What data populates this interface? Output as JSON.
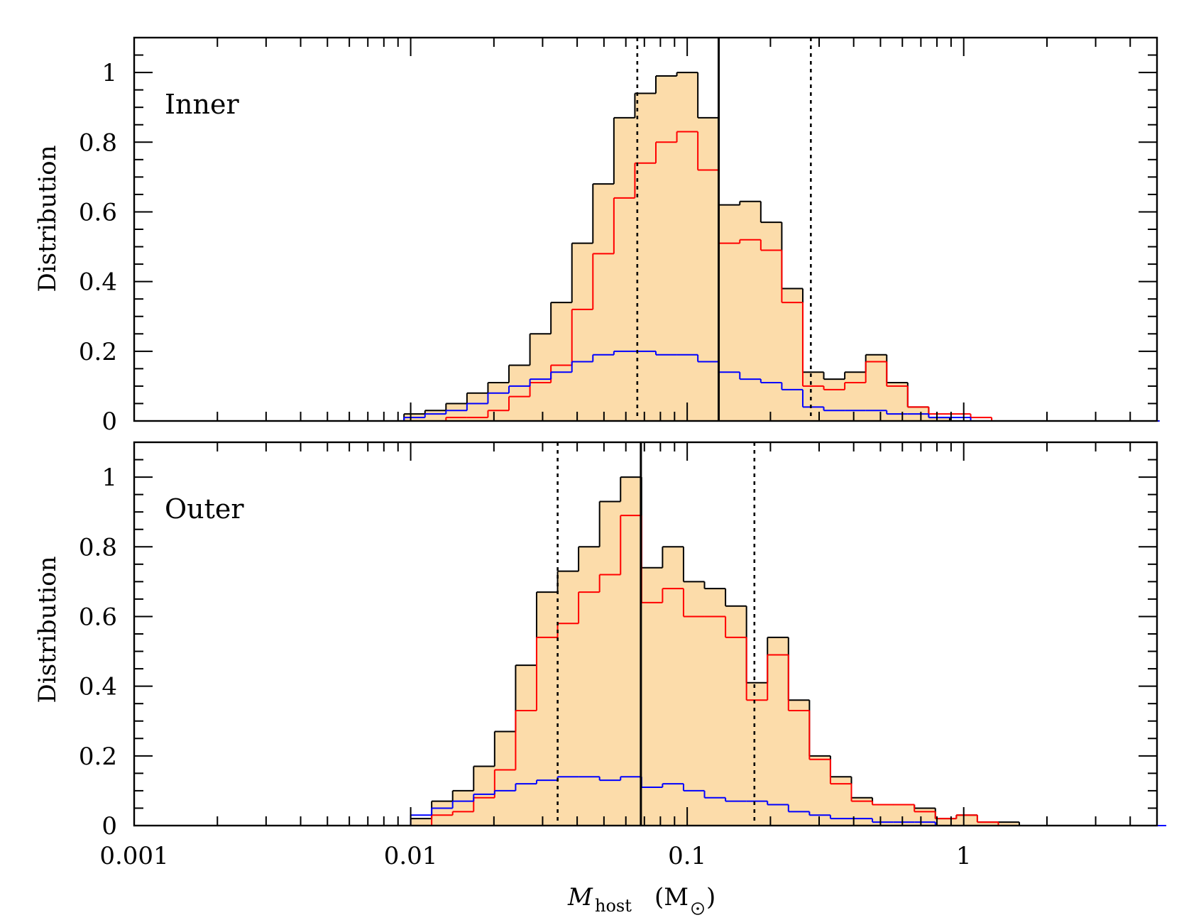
{
  "colors": {
    "fill": "#fcdcaa",
    "total": "#000000",
    "red": "#ff0000",
    "blue": "#0000ff"
  },
  "chart_data": [
    {
      "type": "histogram",
      "panel_label": "Inner",
      "ylabel": "Distribution",
      "xlabel_main": "M",
      "xlabel_sub": "host",
      "xlabel_unit_open": "(M",
      "xlabel_unit_close": ")",
      "x_scale": "log",
      "xlim": [
        0.001,
        5
      ],
      "ylim": [
        0,
        1.1
      ],
      "x_ticks": [
        "0.001",
        "0.01",
        "0.1",
        "1"
      ],
      "x_tick_values": [
        0.001,
        0.01,
        0.1,
        1
      ],
      "y_ticks": [
        "0",
        "0.2",
        "0.4",
        "0.6",
        "0.8",
        "1"
      ],
      "y_tick_values": [
        0,
        0.2,
        0.4,
        0.6,
        0.8,
        1
      ],
      "vline_solid": 0.13,
      "vlines_dotted": [
        0.066,
        0.28
      ],
      "bin_log_start": -2.1,
      "bin_log_width": 0.0759,
      "series": [
        {
          "color": "black",
          "filled": true,
          "values": [
            0,
            0.02,
            0.03,
            0.05,
            0.08,
            0.11,
            0.16,
            0.25,
            0.34,
            0.51,
            0.68,
            0.87,
            0.94,
            0.99,
            1.0,
            0.87,
            0.62,
            0.63,
            0.57,
            0.38,
            0.14,
            0.12,
            0.14,
            0.19,
            0.11,
            0.04,
            0.01,
            0,
            0,
            0,
            0,
            0,
            0,
            0,
            0,
            0,
            0
          ]
        },
        {
          "color": "red",
          "filled": false,
          "values": [
            0,
            0,
            0,
            0.01,
            0.01,
            0.03,
            0.07,
            0.11,
            0.16,
            0.32,
            0.48,
            0.64,
            0.74,
            0.8,
            0.83,
            0.72,
            0.51,
            0.52,
            0.49,
            0.34,
            0.1,
            0.09,
            0.11,
            0.17,
            0.1,
            0.04,
            0.02,
            0.02,
            0.01,
            0,
            0,
            0,
            0,
            0,
            0,
            0,
            0
          ]
        },
        {
          "color": "blue",
          "filled": false,
          "values": [
            0,
            0.01,
            0.02,
            0.03,
            0.05,
            0.08,
            0.1,
            0.12,
            0.14,
            0.17,
            0.19,
            0.2,
            0.2,
            0.19,
            0.19,
            0.17,
            0.14,
            0.12,
            0.11,
            0.09,
            0.04,
            0.03,
            0.03,
            0.03,
            0.02,
            0.02,
            0.01,
            0.01,
            0,
            0,
            0,
            0,
            0,
            0,
            0,
            0,
            0
          ]
        }
      ]
    },
    {
      "type": "histogram",
      "panel_label": "Outer",
      "ylabel": "Distribution",
      "x_scale": "log",
      "xlim": [
        0.001,
        5
      ],
      "ylim": [
        0,
        1.1
      ],
      "x_ticks": [
        "0.001",
        "0.01",
        "0.1",
        "1"
      ],
      "x_tick_values": [
        0.001,
        0.01,
        0.1,
        1
      ],
      "y_ticks": [
        "0",
        "0.2",
        "0.4",
        "0.6",
        "0.8",
        "1"
      ],
      "y_tick_values": [
        0,
        0.2,
        0.4,
        0.6,
        0.8,
        1
      ],
      "vline_solid": 0.068,
      "vlines_dotted": [
        0.034,
        0.175
      ],
      "bin_log_start": -2.0,
      "bin_log_width": 0.0759,
      "series": [
        {
          "color": "black",
          "filled": true,
          "values": [
            0.02,
            0.07,
            0.1,
            0.17,
            0.27,
            0.46,
            0.67,
            0.73,
            0.8,
            0.93,
            1.0,
            0.74,
            0.8,
            0.7,
            0.68,
            0.63,
            0.41,
            0.54,
            0.36,
            0.2,
            0.14,
            0.08,
            0.06,
            0.06,
            0.05,
            0.02,
            0.03,
            0.01,
            0.01,
            0,
            0,
            0,
            0,
            0,
            0,
            0
          ]
        },
        {
          "color": "red",
          "filled": false,
          "values": [
            0,
            0.03,
            0.04,
            0.08,
            0.16,
            0.33,
            0.54,
            0.58,
            0.67,
            0.72,
            0.89,
            0.64,
            0.68,
            0.6,
            0.6,
            0.54,
            0.36,
            0.49,
            0.33,
            0.19,
            0.12,
            0.07,
            0.06,
            0.06,
            0.04,
            0.02,
            0.03,
            0.01,
            0,
            0,
            0,
            0,
            0,
            0,
            0,
            0
          ]
        },
        {
          "color": "blue",
          "filled": false,
          "values": [
            0.03,
            0.05,
            0.07,
            0.09,
            0.1,
            0.12,
            0.13,
            0.14,
            0.14,
            0.13,
            0.14,
            0.11,
            0.12,
            0.1,
            0.08,
            0.07,
            0.07,
            0.06,
            0.04,
            0.03,
            0.02,
            0.02,
            0.01,
            0.01,
            0.01,
            0,
            0,
            0,
            0,
            0,
            0,
            0,
            0,
            0,
            0,
            0
          ]
        }
      ]
    }
  ]
}
